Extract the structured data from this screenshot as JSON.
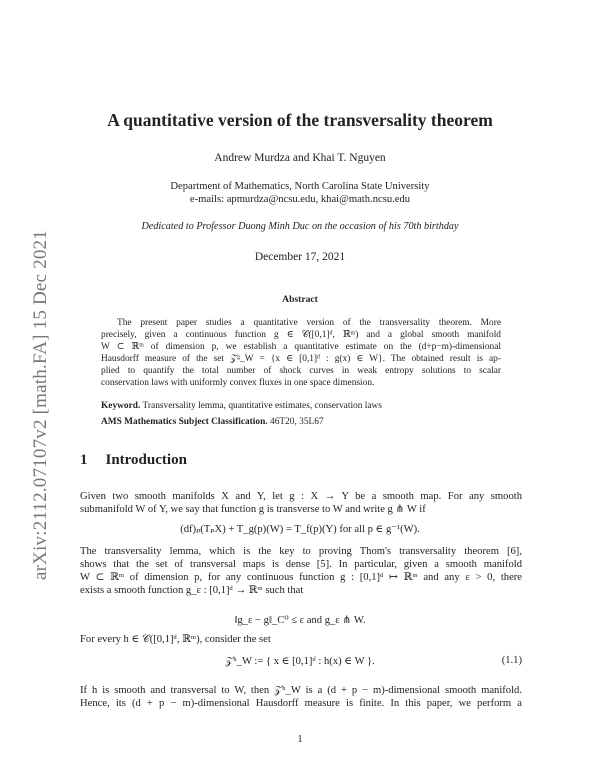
{
  "arxiv_stamp": "arXiv:2112.07107v2  [math.FA]  15 Dec 2021",
  "title": "A quantitative version of the transversality theorem",
  "authors": "Andrew Murdza and Khai T. Nguyen",
  "affiliation": "Department of Mathematics, North Carolina State University",
  "emails": "e-mails:  apmurdza@ncsu.edu,   khai@math.ncsu.edu",
  "dedication": "Dedicated to Professor Duong Minh Duc on the occasion of his 70th birthday",
  "date": "December 17, 2021",
  "abstract": {
    "heading": "Abstract",
    "lines": [
      "The present paper studies a quantitative version of the transversality theorem. More",
      "precisely, given a continuous function g ∈ 𝒞([0,1]ᵈ, ℝᵐ) and a global smooth manifold",
      "W ⊂ ℝᵐ of dimension p, we establish a quantitative estimate on the (d+p−m)-dimensional",
      "Hausdorff measure of the set 𝒵ᵍ_W = {x ∈ [0,1]ᵈ : g(x) ∈ W}. The obtained result is ap-",
      "plied to quantify the total number of shock curves in weak entropy solutions to scalar",
      "conservation laws with uniformly convex fluxes in one space dimension."
    ]
  },
  "keyword": {
    "label": "Keyword.",
    "text": "Transversality lemma, quantitative estimates, conservation laws"
  },
  "ams": {
    "label": "AMS Mathematics Subject Classification.",
    "text": "46T20, 35L67"
  },
  "section": {
    "number": "1",
    "title": "Introduction"
  },
  "body": {
    "p1": [
      "Given two smooth manifolds X and Y, let g : X → Y be a smooth map. For any smooth",
      "submanifold W of Y, we say that function g is transverse to W and write g ⋔ W if"
    ],
    "eq1": "(df)ₚ(TₚX) + T_g(p)(W)  =  T_f(p)(Y)    for all p ∈ g⁻¹(W).",
    "p2": [
      "The transversality lemma, which is the key to proving Thom's transversality theorem [6],",
      "shows that the set of transversal maps is dense [5]. In particular, given a smooth manifold",
      "W ⊂ ℝᵐ of dimension p, for any continuous function g : [0,1]ᵈ ↦ ℝᵐ and any ε > 0, there",
      "exists a smooth function g_ε : [0,1]ᵈ → ℝᵐ such that"
    ],
    "eq2": "‖g_ε − g‖_C⁰  ≤  ε        and        g_ε ⋔ W.",
    "p3": "For every h ∈ 𝒞([0,1]ᵈ, ℝᵐ), consider the set",
    "eq3": "𝒵ʰ_W  :=  { x ∈ [0,1]ᵈ : h(x) ∈ W }.",
    "eq3_number": "(1.1)",
    "p4": [
      "If h is smooth and transversal to W, then 𝒵ʰ_W is a (d + p − m)-dimensional smooth manifold.",
      "Hence, its (d + p − m)-dimensional Hausdorff measure is finite. In this paper, we perform a"
    ]
  },
  "page_number": "1"
}
